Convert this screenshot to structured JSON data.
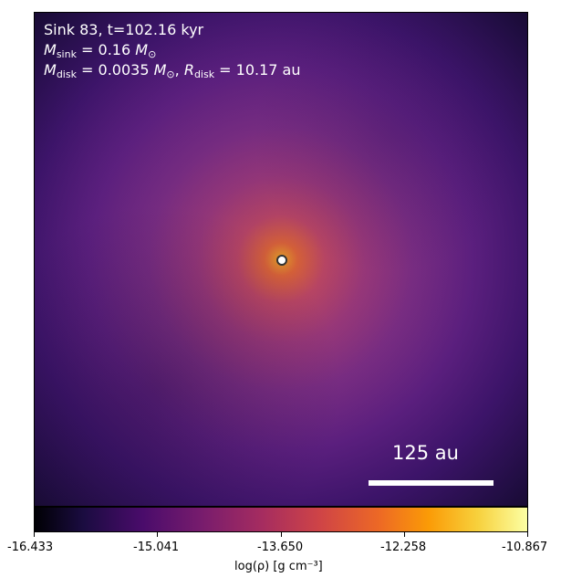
{
  "annotation": {
    "line1": "Sink 83, t=102.16 kyr",
    "line2_symbol": "M",
    "line2_subscript": "sink",
    "line2_value": " = 0.16 ",
    "line2_unit_symbol": "M",
    "line2_unit_subscript": "⊙",
    "line3_mdisk_symbol": "M",
    "line3_mdisk_subscript": "disk",
    "line3_mdisk_value": " = 0.0035 ",
    "line3_mdisk_unit_symbol": "M",
    "line3_mdisk_unit_subscript": "⊙",
    "line3_separator": ", ",
    "line3_rdisk_symbol": "R",
    "line3_rdisk_subscript": "disk",
    "line3_rdisk_value": " = 10.17 au"
  },
  "scalebar": {
    "label": "125 au"
  },
  "colorbar": {
    "min": -16.433,
    "max": -10.867,
    "tick_labels": [
      "-16.433",
      "-15.041",
      "-13.650",
      "-12.258",
      "-10.867"
    ],
    "label": "log(ρ) [g cm⁻³]",
    "colormap": "inferno"
  },
  "colors": {
    "annotation_text": "#ffffff",
    "sink_marker_fill": "#ffffff",
    "sink_marker_edge": "#333333"
  }
}
